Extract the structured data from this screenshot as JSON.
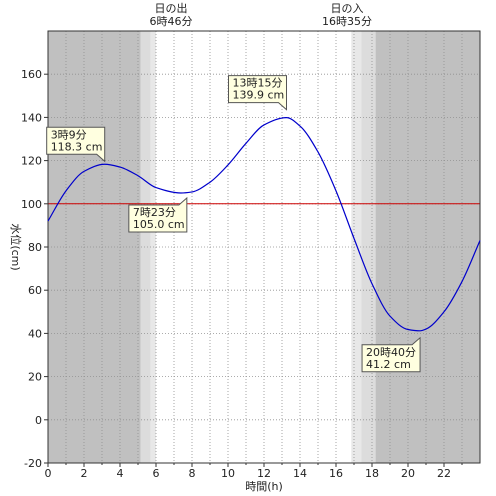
{
  "sunrise": {
    "label": "日の出",
    "time": "6時46分"
  },
  "sunset": {
    "label": "日の入",
    "time": "16時35分"
  },
  "chart_data": {
    "type": "line",
    "xlabel": "時間(h)",
    "ylabel": "水位(cm)",
    "xlim": [
      0,
      24
    ],
    "ylim": [
      -20,
      180
    ],
    "x_ticks": [
      "0",
      "2",
      "4",
      "6",
      "8",
      "10",
      "12",
      "14",
      "16",
      "18",
      "20",
      "22"
    ],
    "y_ticks": [
      "-20",
      "0",
      "20",
      "40",
      "60",
      "80",
      "100",
      "120",
      "140",
      "160"
    ],
    "reference_line": {
      "y": 100,
      "color": "#cc0000"
    },
    "series": [
      {
        "color": "#0000cc",
        "x": [
          0,
          1,
          2,
          3.15,
          4,
          5,
          6,
          7.38,
          8,
          9,
          10,
          11,
          12,
          13.25,
          14,
          15,
          16,
          17,
          18,
          19,
          20,
          20.67,
          21,
          22,
          23,
          24
        ],
        "y": [
          92,
          106,
          115,
          118.3,
          117,
          113,
          107.5,
          105.0,
          105.5,
          110,
          118,
          128,
          136.5,
          139.9,
          136,
          124,
          106,
          84,
          63,
          48,
          41.8,
          41.2,
          42,
          50,
          64,
          83
        ]
      }
    ],
    "annotations": [
      {
        "line1": "3時9分",
        "line2": "118.3 cm",
        "x": 3.15,
        "y": 118.3
      },
      {
        "line1": "7時23分",
        "line2": "105.0 cm",
        "x": 7.38,
        "y": 105.0
      },
      {
        "line1": "13時15分",
        "line2": "139.9 cm",
        "x": 13.25,
        "y": 139.9
      },
      {
        "line1": "20時40分",
        "line2": "41.2 cm",
        "x": 20.67,
        "y": 41.2
      }
    ],
    "shading": {
      "night": "#c0c0c0",
      "twilight": "#dcdcdc",
      "day": "#ffffff",
      "grid": "dotted"
    }
  }
}
